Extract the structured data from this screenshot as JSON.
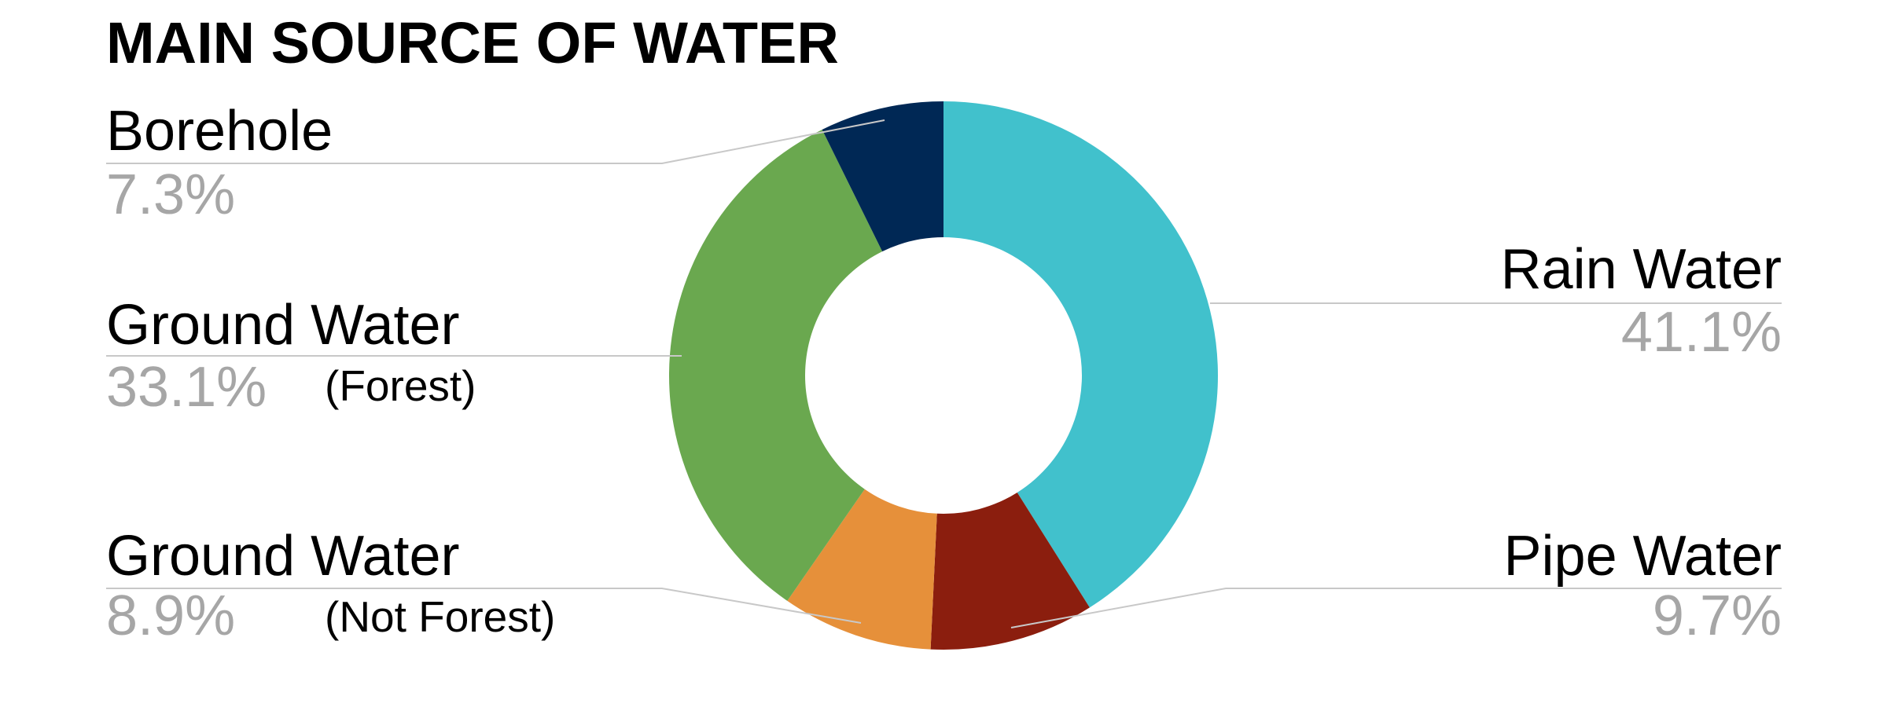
{
  "chart_data": {
    "type": "donut",
    "title": "MAIN SOURCE OF WATER",
    "categories": [
      "Rain Water",
      "Pipe Water",
      "Ground Water",
      "Ground Water",
      "Borehole"
    ],
    "notes": [
      null,
      null,
      "(Not Forest)",
      "(Forest)",
      null
    ],
    "values": [
      41.1,
      9.7,
      8.9,
      33.1,
      7.3
    ],
    "value_labels": [
      "41.1%",
      "9.7%",
      "8.9%",
      "33.1%",
      "7.3%"
    ],
    "colors": [
      "#41c1cc",
      "#8b1e0e",
      "#e6903a",
      "#6aa84f",
      "#002855"
    ]
  }
}
